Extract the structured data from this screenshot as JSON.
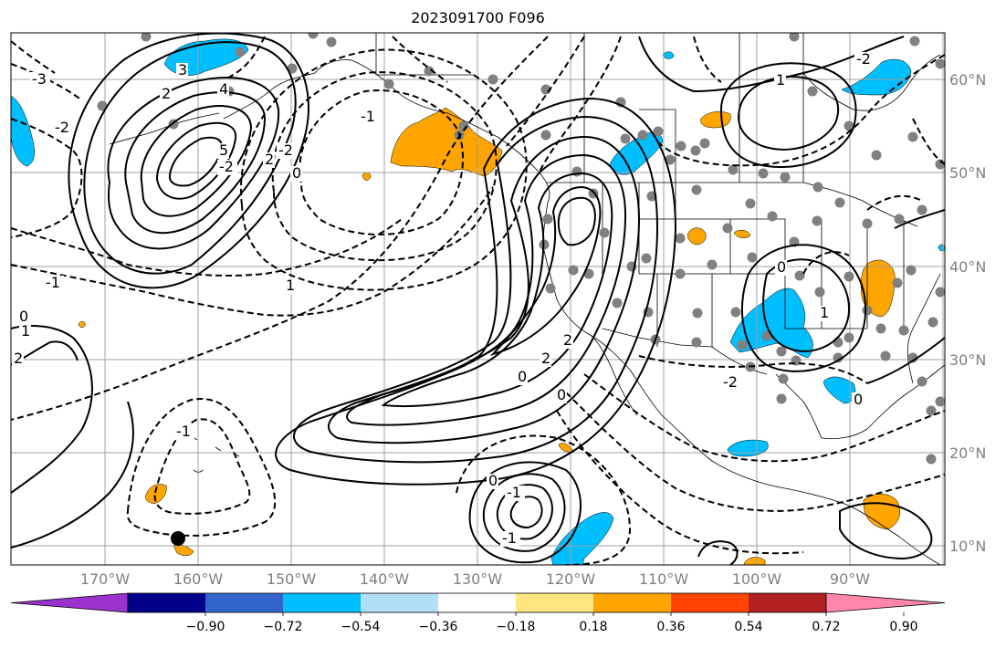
{
  "title": "2023091700 F096",
  "map": {
    "lat_labels": [
      "60°N",
      "50°N",
      "40°N",
      "30°N",
      "20°N",
      "10°N"
    ],
    "lon_labels": [
      "170°W",
      "160°W",
      "150°W",
      "140°W",
      "130°W",
      "120°W",
      "110°W",
      "100°W",
      "90°W"
    ],
    "contour_labels": [
      "-3",
      "-2",
      "-1",
      "0",
      "1",
      "2",
      "3",
      "4",
      "5",
      "-2",
      "-1",
      "0",
      "1",
      "2",
      "-2",
      "2",
      "-1",
      "0",
      "2",
      "-1",
      "0",
      "2",
      "1",
      "-2",
      "0",
      "-2",
      "0",
      "1",
      "-1",
      "0"
    ],
    "colors": {
      "positive_fill": "#ffa500",
      "negative_fill": "#00bfff",
      "contour": "#000000",
      "grid": "#a0a0a0",
      "dots": "#808080",
      "coast": "#000000"
    }
  },
  "colorbar": {
    "labels": [
      "−0.90",
      "−0.72",
      "−0.54",
      "−0.36",
      "−0.18",
      "0.18",
      "0.36",
      "0.54",
      "0.72",
      "0.90"
    ],
    "colors": [
      "#9933cc",
      "#000088",
      "#3366cc",
      "#00bfff",
      "#b0e0f8",
      "#ffffff",
      "#ffe680",
      "#ffa500",
      "#ff4500",
      "#b22222",
      "#ff88aa"
    ]
  }
}
